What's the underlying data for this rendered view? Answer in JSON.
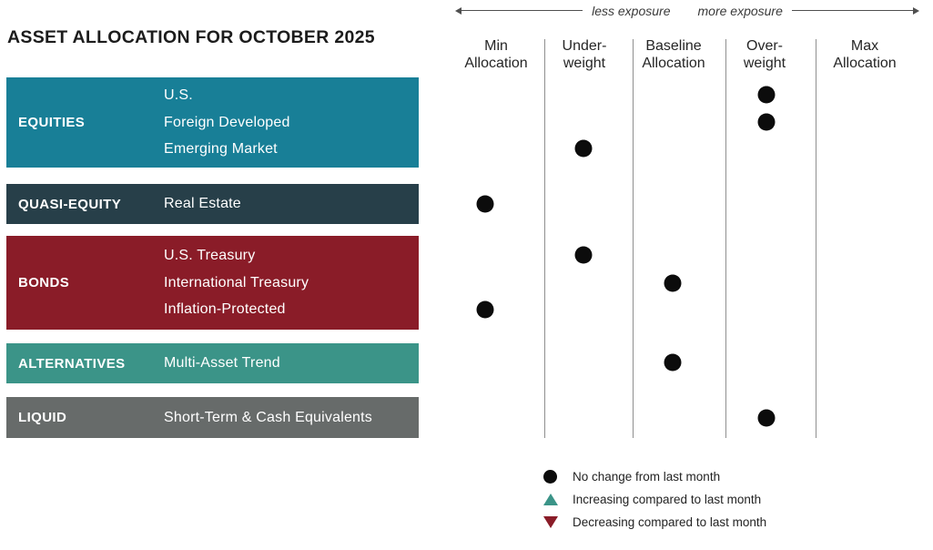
{
  "title": "ASSET ALLOCATION FOR OCTOBER 2025",
  "exposure": {
    "less": "less exposure",
    "more": "more exposure"
  },
  "categories": [
    {
      "name": "EQUITIES",
      "color": "#187f97",
      "assets": [
        "U.S.",
        "Foreign Developed",
        "Emerging Market"
      ]
    },
    {
      "name": "QUASI-EQUITY",
      "color": "#273f49",
      "assets": [
        "Real Estate"
      ]
    },
    {
      "name": "BONDS",
      "color": "#8a1c28",
      "assets": [
        "U.S. Treasury",
        "International Treasury",
        "Inflation-Protected"
      ]
    },
    {
      "name": "ALTERNATIVES",
      "color": "#3b9488",
      "assets": [
        "Multi-Asset Trend"
      ]
    },
    {
      "name": "LIQUID",
      "color": "#676b6a",
      "assets": [
        "Short-Term & Cash Equivalents"
      ]
    }
  ],
  "chart_data": {
    "type": "scatter",
    "title": "ASSET ALLOCATION FOR OCTOBER 2025",
    "columns": [
      "Min Allocation",
      "Underweight",
      "Baseline Allocation",
      "Overweight",
      "Max Allocation"
    ],
    "columns_display": [
      "Min\nAllocation",
      "Under-\nweight",
      "Baseline\nAllocation",
      "Over-\nweight",
      "Max\nAllocation"
    ],
    "x_axis": {
      "left_label": "less exposure",
      "right_label": "more exposure"
    },
    "marker_color_no_change": "#0c0c0c",
    "rows": [
      {
        "category": "EQUITIES",
        "asset": "U.S.",
        "position": "Overweight",
        "position_index": 3,
        "change": "no-change"
      },
      {
        "category": "EQUITIES",
        "asset": "Foreign Developed",
        "position": "Overweight",
        "position_index": 3,
        "change": "no-change"
      },
      {
        "category": "EQUITIES",
        "asset": "Emerging Market",
        "position": "Underweight",
        "position_index": 1,
        "change": "no-change"
      },
      {
        "category": "QUASI-EQUITY",
        "asset": "Real Estate",
        "position": "Min Allocation",
        "position_index": 0,
        "change": "no-change"
      },
      {
        "category": "BONDS",
        "asset": "U.S. Treasury",
        "position": "Underweight",
        "position_index": 1,
        "change": "no-change"
      },
      {
        "category": "BONDS",
        "asset": "International Treasury",
        "position": "Baseline Allocation",
        "position_index": 2,
        "change": "no-change"
      },
      {
        "category": "BONDS",
        "asset": "Inflation-Protected",
        "position": "Min Allocation",
        "position_index": 0,
        "change": "no-change"
      },
      {
        "category": "ALTERNATIVES",
        "asset": "Multi-Asset Trend",
        "position": "Baseline Allocation",
        "position_index": 2,
        "change": "no-change"
      },
      {
        "category": "LIQUID",
        "asset": "Short-Term & Cash Equivalents",
        "position": "Overweight",
        "position_index": 3,
        "change": "no-change"
      }
    ]
  },
  "legend": {
    "items": [
      {
        "marker": "circle",
        "color": "#0c0c0c",
        "label": "No change from last month"
      },
      {
        "marker": "triangle-up",
        "color": "#3b9488",
        "label": "Increasing compared to last month"
      },
      {
        "marker": "triangle-down",
        "color": "#8a1c28",
        "label": "Decreasing compared to last month"
      }
    ]
  }
}
